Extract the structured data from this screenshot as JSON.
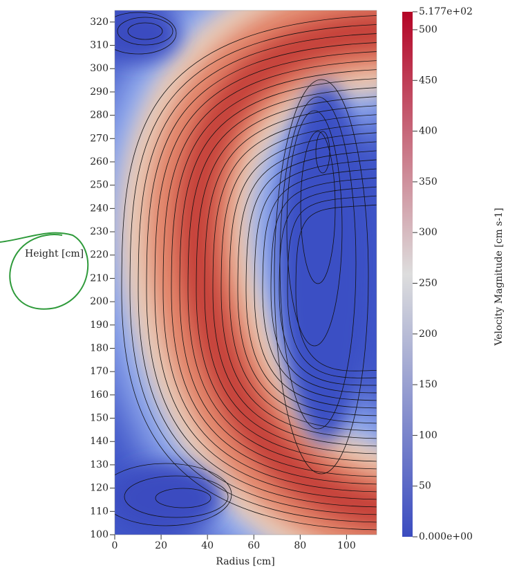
{
  "chart_data": {
    "type": "heatmap",
    "x_label": "Radius [cm]",
    "y_label": "Height [cm]",
    "xlim": [
      0,
      113
    ],
    "ylim": [
      100,
      325
    ],
    "xticks": [
      0,
      20,
      40,
      60,
      80,
      100
    ],
    "yticks": [
      100,
      110,
      120,
      130,
      140,
      150,
      160,
      170,
      180,
      190,
      200,
      210,
      220,
      230,
      240,
      250,
      260,
      270,
      280,
      290,
      300,
      310,
      320
    ],
    "colorbar": {
      "title": "Velocity Magnitude [cm s-1]",
      "clim": [
        0,
        517.7
      ],
      "colors": [
        "#3b4cc0",
        "#dddddd",
        "#b40426"
      ],
      "ticks": [
        {
          "value": 0,
          "label": "0.000e+00"
        },
        50,
        100,
        150,
        200,
        250,
        300,
        350,
        400,
        450,
        500,
        {
          "value": 517.7,
          "label": "5.177e+02"
        }
      ]
    }
  }
}
